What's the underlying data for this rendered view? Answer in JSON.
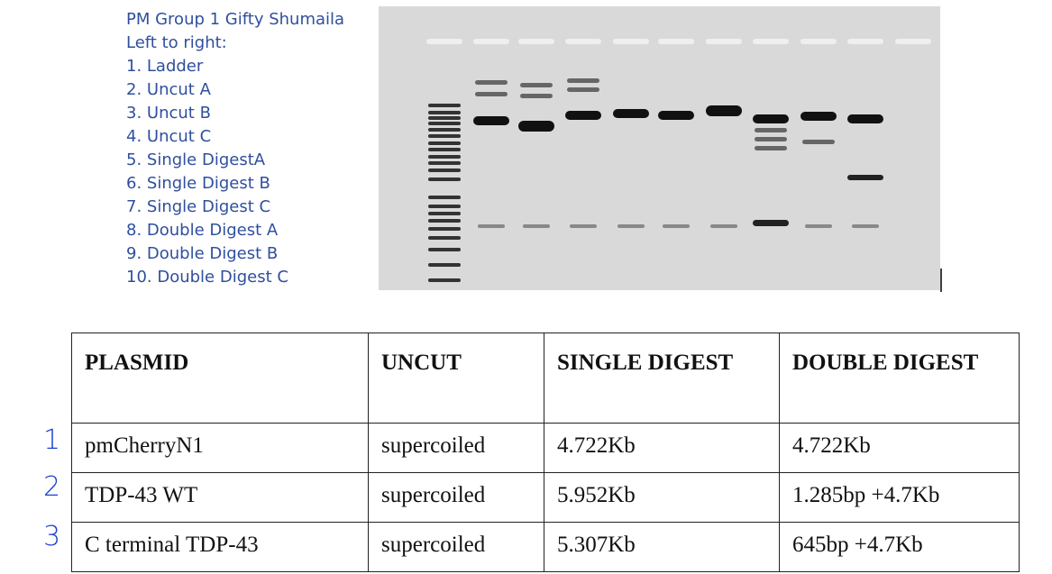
{
  "caption": {
    "lines": [
      "PM Group 1 Gifty Shumaila",
      "Left to right:",
      "1. Ladder",
      "2. Uncut A",
      "3. Uncut B",
      "4. Uncut C",
      "5. Single DigestA",
      "6. Single Digest B",
      "7. Single Digest C",
      "8. Double Digest A",
      "9. Double Digest B",
      "10. Double Digest C"
    ]
  },
  "table": {
    "header": [
      "PLASMID",
      "UNCUT",
      "SINGLE DIGEST",
      "DOUBLE DIGEST"
    ],
    "rows": [
      [
        "pmCherryN1",
        "supercoiled",
        "4.722Kb",
        "4.722Kb"
      ],
      [
        "TDP-43 WT",
        "supercoiled",
        "5.952Kb",
        "1.285bp +4.7Kb"
      ],
      [
        "C terminal TDP-43",
        "supercoiled",
        "5.307Kb",
        "645bp +4.7Kb"
      ]
    ]
  },
  "row_numbers": [
    "1",
    "2",
    "3"
  ]
}
